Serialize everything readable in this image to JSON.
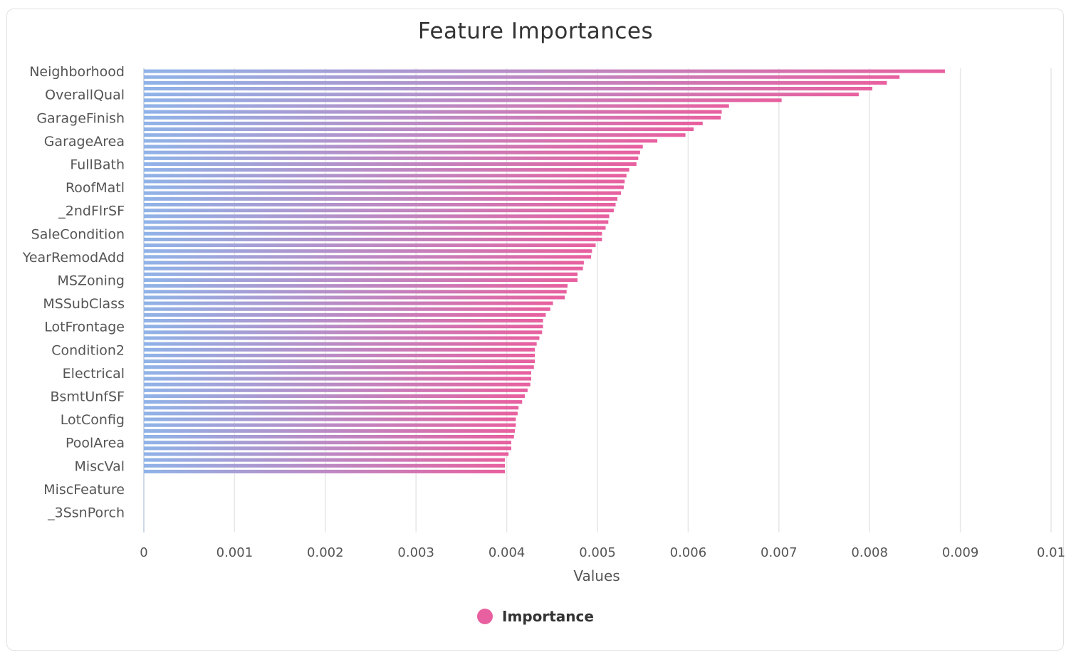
{
  "chart_data": {
    "type": "bar",
    "orientation": "horizontal",
    "title": "Feature Importances",
    "xlabel": "Values",
    "ylabel": "",
    "xlim": [
      0,
      0.01
    ],
    "x_ticks": [
      "0",
      "0.001",
      "0.002",
      "0.003",
      "0.004",
      "0.005",
      "0.006",
      "0.007",
      "0.008",
      "0.009",
      "0.01"
    ],
    "category_labels": [
      "Neighborhood",
      "OverallQual",
      "GarageFinish",
      "GarageArea",
      "FullBath",
      "RoofMatl",
      "_2ndFlrSF",
      "SaleCondition",
      "YearRemodAdd",
      "MSZoning",
      "MSSubClass",
      "LotFrontage",
      "Condition2",
      "Electrical",
      "BsmtUnfSF",
      "LotConfig",
      "PoolArea",
      "MiscVal",
      "MiscFeature",
      "_3SsnPorch"
    ],
    "label_stride": 4,
    "series": [
      {
        "name": "Importance",
        "color": "#e8609f",
        "gradient": [
          "#8fb3e8",
          "#e8609f"
        ],
        "values": [
          0.00883,
          0.00833,
          0.00819,
          0.00803,
          0.00788,
          0.00703,
          0.00645,
          0.00637,
          0.00636,
          0.00616,
          0.00606,
          0.00597,
          0.00566,
          0.0055,
          0.00547,
          0.00545,
          0.00543,
          0.00535,
          0.00532,
          0.0053,
          0.00529,
          0.00526,
          0.00522,
          0.0052,
          0.00518,
          0.00513,
          0.00512,
          0.00509,
          0.00505,
          0.00505,
          0.00498,
          0.00494,
          0.00493,
          0.00485,
          0.00484,
          0.00478,
          0.00478,
          0.00467,
          0.00466,
          0.00464,
          0.00451,
          0.00448,
          0.00443,
          0.0044,
          0.0044,
          0.00439,
          0.00436,
          0.00433,
          0.00431,
          0.00431,
          0.00431,
          0.0043,
          0.00427,
          0.00427,
          0.00426,
          0.00423,
          0.0042,
          0.00417,
          0.00413,
          0.00412,
          0.0041,
          0.0041,
          0.00409,
          0.00408,
          0.00405,
          0.00405,
          0.00402,
          0.00398,
          0.00398,
          0.00398,
          0,
          0,
          0,
          0,
          0,
          0,
          0,
          0,
          0,
          0
        ]
      }
    ],
    "grid": true,
    "legend_position": "bottom"
  }
}
